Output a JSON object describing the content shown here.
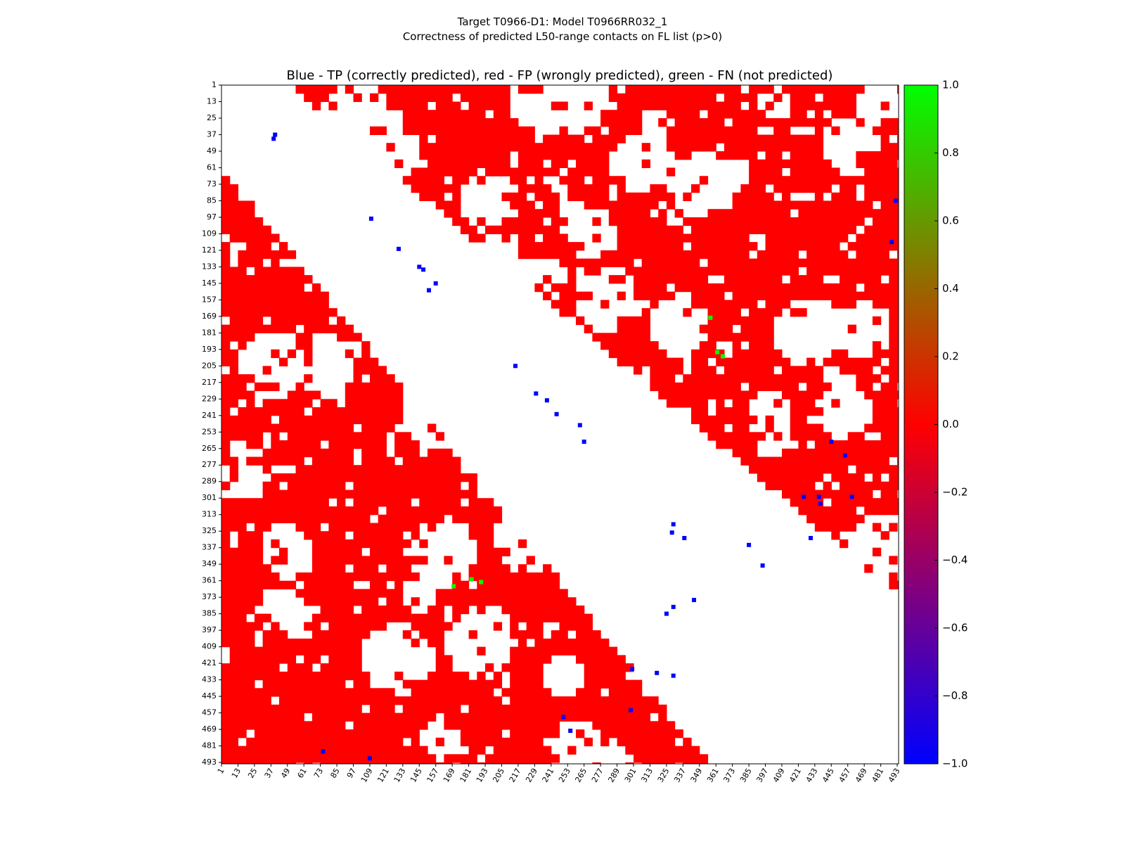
{
  "figure": {
    "title_line1": "Target T0966-D1: Model T0966RR032_1",
    "title_line2": "Correctness of predicted L50-range contacts on FL list (p>0)"
  },
  "chart_data": {
    "type": "heatmap",
    "title": "Blue - TP (correctly predicted), red - FP (wrongly predicted), green - FN (not predicted)",
    "x_tick_labels": [
      "1",
      "13",
      "25",
      "37",
      "49",
      "61",
      "73",
      "85",
      "97",
      "109",
      "121",
      "133",
      "145",
      "157",
      "169",
      "181",
      "193",
      "205",
      "217",
      "229",
      "241",
      "253",
      "265",
      "277",
      "289",
      "301",
      "313",
      "325",
      "337",
      "349",
      "361",
      "373",
      "385",
      "397",
      "409",
      "421",
      "433",
      "445",
      "457",
      "469",
      "481",
      "493"
    ],
    "y_tick_labels": [
      "1",
      "13",
      "25",
      "37",
      "49",
      "61",
      "73",
      "85",
      "97",
      "109",
      "121",
      "133",
      "145",
      "157",
      "169",
      "181",
      "193",
      "205",
      "217",
      "229",
      "241",
      "253",
      "265",
      "277",
      "289",
      "301",
      "313",
      "325",
      "337",
      "349",
      "361",
      "373",
      "385",
      "397",
      "409",
      "421",
      "433",
      "445",
      "457",
      "469",
      "481",
      "493"
    ],
    "axis_range": [
      1,
      494
    ],
    "colorbar": {
      "ticks": [
        "1.0",
        "0.8",
        "0.6",
        "0.4",
        "0.2",
        "0.0",
        "−0.2",
        "−0.4",
        "−0.6",
        "−0.8",
        "−1.0"
      ],
      "range": [
        -1.0,
        1.0
      ],
      "colors": [
        "#0000ff",
        "#ff0000",
        "#00ff00"
      ]
    },
    "colors": {
      "tp": "#0000ff",
      "fp": "#ff0000",
      "fn": "#00ff00",
      "background": "#ffffff"
    },
    "tp_contacts_approx": [
      [
        37,
        40
      ],
      [
        40,
        39
      ],
      [
        98,
        110
      ],
      [
        120,
        130
      ],
      [
        133,
        145
      ],
      [
        135,
        148
      ],
      [
        145,
        157
      ],
      [
        150,
        152
      ],
      [
        205,
        215
      ],
      [
        225,
        230
      ],
      [
        230,
        238
      ],
      [
        240,
        245
      ],
      [
        248,
        262
      ],
      [
        260,
        265
      ],
      [
        300,
        436
      ],
      [
        305,
        437
      ],
      [
        320,
        330
      ],
      [
        326,
        329
      ],
      [
        330,
        338
      ],
      [
        385,
        325
      ],
      [
        375,
        345
      ],
      [
        380,
        330
      ],
      [
        425,
        300
      ],
      [
        428,
        318
      ],
      [
        430,
        330
      ],
      [
        455,
        299
      ],
      [
        460,
        250
      ],
      [
        470,
        255
      ],
      [
        485,
        75
      ],
      [
        490,
        109
      ],
      [
        85,
        492
      ],
      [
        115,
        489
      ],
      [
        260,
        445
      ],
      [
        270,
        455
      ],
      [
        300,
        425
      ],
      [
        300,
        460
      ],
      [
        330,
        430
      ],
      [
        335,
        385
      ],
      [
        350,
        395
      ]
    ],
    "fn_contacts_approx": [
      [
        170,
        357
      ],
      [
        195,
        362
      ],
      [
        198,
        366
      ],
      [
        365,
        170
      ],
      [
        360,
        183
      ],
      [
        362,
        190
      ]
    ]
  }
}
